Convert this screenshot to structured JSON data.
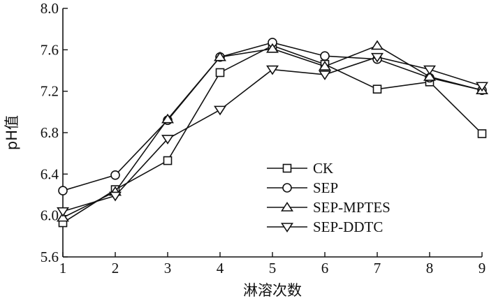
{
  "chart_data": {
    "type": "line",
    "x": [
      1,
      2,
      3,
      4,
      5,
      6,
      7,
      8,
      9
    ],
    "xlabel": "淋溶次数",
    "ylabel": "pH值",
    "xlim": [
      1,
      9
    ],
    "ylim": [
      5.6,
      8.0
    ],
    "x_ticks": [
      "1",
      "2",
      "3",
      "4",
      "5",
      "6",
      "7",
      "8",
      "9"
    ],
    "y_ticks": [
      "5.6",
      "6.0",
      "6.4",
      "6.8",
      "7.2",
      "7.6",
      "8.0"
    ],
    "grid": false,
    "legend_position": "center-right",
    "series": [
      {
        "name": "CK",
        "marker": "square",
        "values": [
          5.93,
          6.25,
          6.53,
          7.38,
          7.64,
          7.46,
          7.22,
          7.29,
          6.79
        ]
      },
      {
        "name": "SEP",
        "marker": "circle",
        "values": [
          6.24,
          6.39,
          6.92,
          7.53,
          7.67,
          7.54,
          7.51,
          7.33,
          7.21
        ]
      },
      {
        "name": "SEP-MPTES",
        "marker": "triangle-up",
        "values": [
          5.98,
          6.23,
          6.93,
          7.53,
          7.61,
          7.44,
          7.64,
          7.34,
          7.21
        ]
      },
      {
        "name": "SEP-DDTC",
        "marker": "triangle-down",
        "values": [
          6.04,
          6.19,
          6.74,
          7.02,
          7.41,
          7.36,
          7.53,
          7.41,
          7.25
        ]
      }
    ]
  }
}
